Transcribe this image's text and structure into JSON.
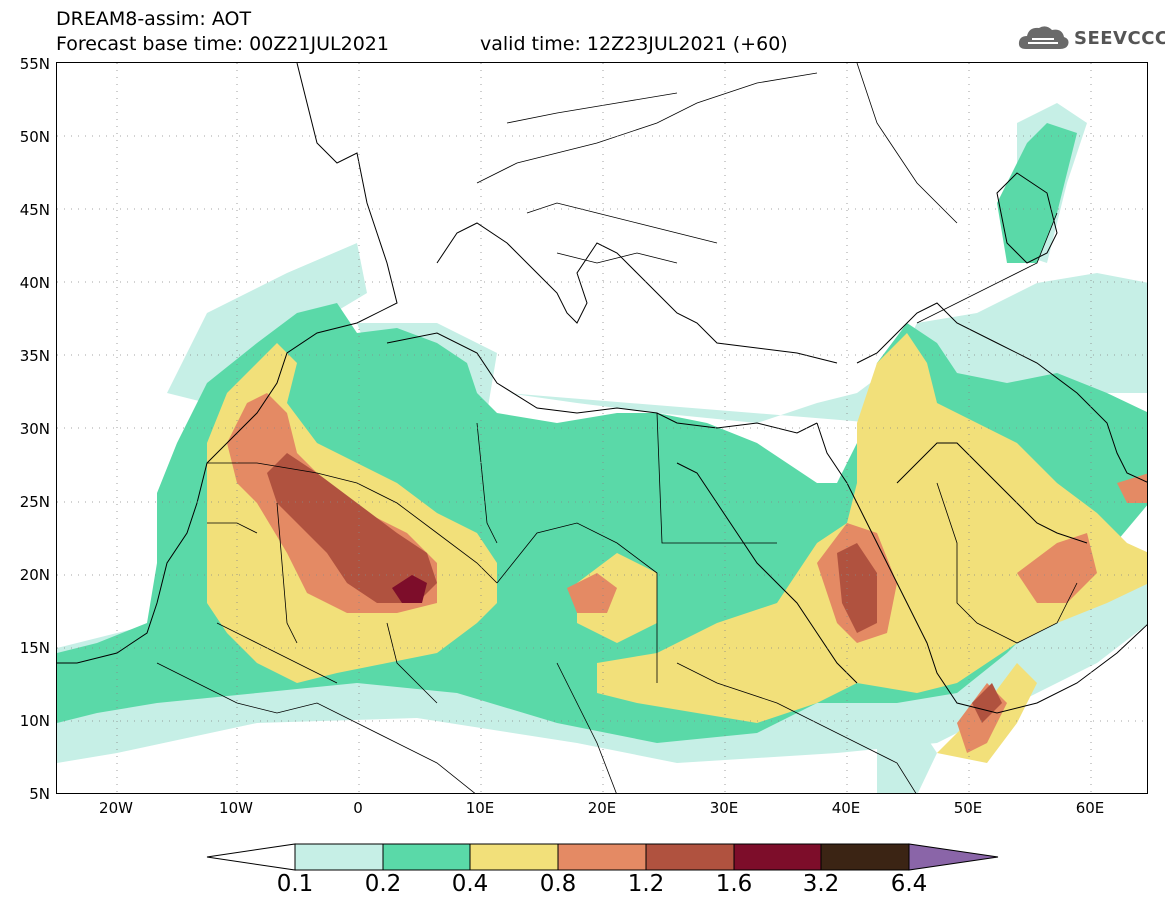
{
  "header": {
    "title_line1": "DREAM8-assim: AOT",
    "title_line2_base": "Forecast base time: 00Z21JUL2021",
    "title_line2_valid": "valid time: 12Z23JUL2021 (+60)",
    "logo_text": "SEEVCCC",
    "logo_icon": "cloud-icon"
  },
  "map": {
    "lat_labels": [
      "55N",
      "50N",
      "45N",
      "40N",
      "35N",
      "30N",
      "25N",
      "20N",
      "15N",
      "10N",
      "5N"
    ],
    "lon_labels": [
      "20W",
      "10W",
      "0",
      "10E",
      "20E",
      "30E",
      "40E",
      "50E",
      "60E"
    ],
    "colors": {
      "c1": "#c6efe6",
      "c2": "#5ad9a8",
      "c3": "#f2e07a",
      "c4": "#e48a64",
      "c5": "#b0523f",
      "c6": "#7d0d2a",
      "c7": "#3b2414",
      "c8": "#8a65a8"
    }
  },
  "legend": {
    "labels": [
      "0.1",
      "0.2",
      "0.4",
      "0.8",
      "1.2",
      "1.6",
      "3.2",
      "6.4"
    ],
    "colors": [
      "#c6efe6",
      "#5ad9a8",
      "#f2e07a",
      "#e48a64",
      "#b0523f",
      "#7d0d2a",
      "#3b2414"
    ],
    "under_color": "#ffffff",
    "over_color": "#8a65a8"
  }
}
